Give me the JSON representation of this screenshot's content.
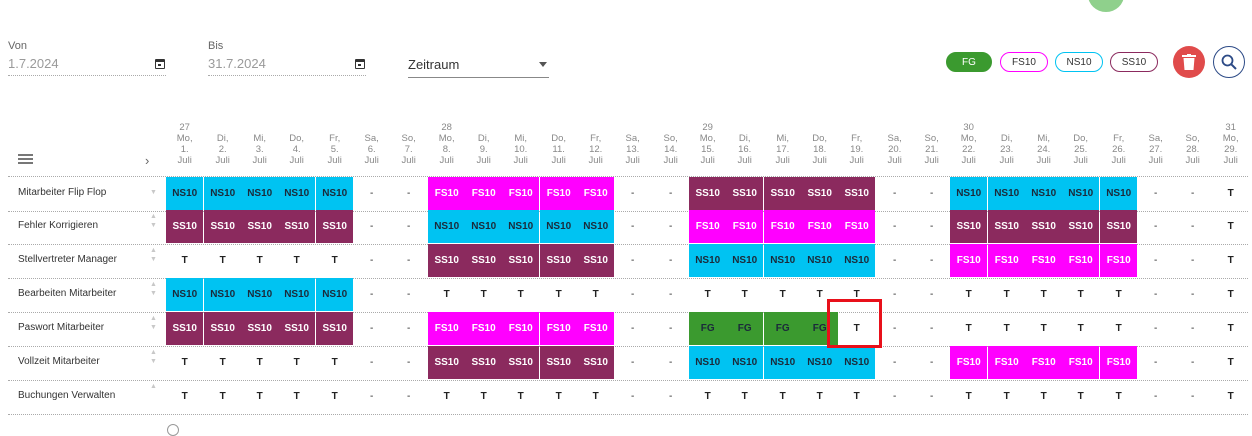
{
  "filters": {
    "from_label": "Von",
    "from_value": "1.7.2024",
    "to_label": "Bis",
    "to_value": "31.7.2024",
    "range_select": "Zeitraum"
  },
  "legend": [
    {
      "label": "FG",
      "fill": "#3b9a2f",
      "border": "#3b9a2f",
      "text": "#ffffff"
    },
    {
      "label": "FS10",
      "fill": "#ffffff",
      "border": "#ff00ff",
      "text": "#333333"
    },
    {
      "label": "NS10",
      "fill": "#ffffff",
      "border": "#00c3f2",
      "text": "#333333"
    },
    {
      "label": "SS10",
      "fill": "#ffffff",
      "border": "#8b2a5e",
      "text": "#333333"
    }
  ],
  "colors": {
    "FS10": "#ff00ff",
    "NS10": "#00c3f2",
    "SS10": "#8b2a5e",
    "FG": "#3b9a2f"
  },
  "days": [
    {
      "week": "27",
      "name": "Mo,",
      "num": "1.",
      "month": "Juli"
    },
    {
      "week": "",
      "name": "Di,",
      "num": "2.",
      "month": "Juli"
    },
    {
      "week": "",
      "name": "Mi,",
      "num": "3.",
      "month": "Juli"
    },
    {
      "week": "",
      "name": "Do,",
      "num": "4.",
      "month": "Juli"
    },
    {
      "week": "",
      "name": "Fr,",
      "num": "5.",
      "month": "Juli"
    },
    {
      "week": "",
      "name": "Sa,",
      "num": "6.",
      "month": "Juli"
    },
    {
      "week": "",
      "name": "So,",
      "num": "7.",
      "month": "Juli"
    },
    {
      "week": "28",
      "name": "Mo,",
      "num": "8.",
      "month": "Juli"
    },
    {
      "week": "",
      "name": "Di,",
      "num": "9.",
      "month": "Juli"
    },
    {
      "week": "",
      "name": "Mi,",
      "num": "10.",
      "month": "Juli"
    },
    {
      "week": "",
      "name": "Do,",
      "num": "11.",
      "month": "Juli"
    },
    {
      "week": "",
      "name": "Fr,",
      "num": "12.",
      "month": "Juli"
    },
    {
      "week": "",
      "name": "Sa,",
      "num": "13.",
      "month": "Juli"
    },
    {
      "week": "",
      "name": "So,",
      "num": "14.",
      "month": "Juli"
    },
    {
      "week": "29",
      "name": "Mo,",
      "num": "15.",
      "month": "Juli"
    },
    {
      "week": "",
      "name": "Di,",
      "num": "16.",
      "month": "Juli"
    },
    {
      "week": "",
      "name": "Mi,",
      "num": "17.",
      "month": "Juli"
    },
    {
      "week": "",
      "name": "Do,",
      "num": "18.",
      "month": "Juli"
    },
    {
      "week": "",
      "name": "Fr,",
      "num": "19.",
      "month": "Juli"
    },
    {
      "week": "",
      "name": "Sa,",
      "num": "20.",
      "month": "Juli"
    },
    {
      "week": "",
      "name": "So,",
      "num": "21.",
      "month": "Juli"
    },
    {
      "week": "30",
      "name": "Mo,",
      "num": "22.",
      "month": "Juli"
    },
    {
      "week": "",
      "name": "Di,",
      "num": "23.",
      "month": "Juli"
    },
    {
      "week": "",
      "name": "Mi,",
      "num": "24.",
      "month": "Juli"
    },
    {
      "week": "",
      "name": "Do,",
      "num": "25.",
      "month": "Juli"
    },
    {
      "week": "",
      "name": "Fr,",
      "num": "26.",
      "month": "Juli"
    },
    {
      "week": "",
      "name": "Sa,",
      "num": "27.",
      "month": "Juli"
    },
    {
      "week": "",
      "name": "So,",
      "num": "28.",
      "month": "Juli"
    },
    {
      "week": "31",
      "name": "Mo,",
      "num": "29.",
      "month": "Juli"
    }
  ],
  "rows": [
    {
      "name": "Mitarbeiter Flip Flop",
      "cells": [
        "NS10",
        "NS10",
        "NS10",
        "NS10",
        "NS10",
        "-",
        "-",
        "FS10",
        "FS10",
        "FS10",
        "FS10",
        "FS10",
        "-",
        "-",
        "SS10",
        "SS10",
        "SS10",
        "SS10",
        "SS10",
        "-",
        "-",
        "NS10",
        "NS10",
        "NS10",
        "NS10",
        "NS10",
        "-",
        "-",
        "T"
      ]
    },
    {
      "name": "Fehler Korrigieren",
      "cells": [
        "SS10",
        "SS10",
        "SS10",
        "SS10",
        "SS10",
        "-",
        "-",
        "NS10",
        "NS10",
        "NS10",
        "NS10",
        "NS10",
        "-",
        "-",
        "FS10",
        "FS10",
        "FS10",
        "FS10",
        "FS10",
        "-",
        "-",
        "SS10",
        "SS10",
        "SS10",
        "SS10",
        "SS10",
        "-",
        "-",
        "T"
      ]
    },
    {
      "name": "Stellvertreter Manager",
      "cells": [
        "T",
        "T",
        "T",
        "T",
        "T",
        "-",
        "-",
        "SS10",
        "SS10",
        "SS10",
        "SS10",
        "SS10",
        "-",
        "-",
        "NS10",
        "NS10",
        "NS10",
        "NS10",
        "NS10",
        "-",
        "-",
        "FS10",
        "FS10",
        "FS10",
        "FS10",
        "FS10",
        "-",
        "-",
        "T"
      ]
    },
    {
      "name": "Bearbeiten Mitarbeiter",
      "cells": [
        "NS10",
        "NS10",
        "NS10",
        "NS10",
        "NS10",
        "-",
        "-",
        "T",
        "T",
        "T",
        "T",
        "T",
        "-",
        "-",
        "T",
        "T",
        "T",
        "T",
        "T",
        "-",
        "-",
        "T",
        "T",
        "T",
        "T",
        "T",
        "-",
        "-",
        "T"
      ]
    },
    {
      "name": "Paswort Mitarbeiter",
      "cells": [
        "SS10",
        "SS10",
        "SS10",
        "SS10",
        "SS10",
        "-",
        "-",
        "FS10",
        "FS10",
        "FS10",
        "FS10",
        "FS10",
        "-",
        "-",
        "FG",
        "FG",
        "FG",
        "FG",
        "T",
        "-",
        "-",
        "T",
        "T",
        "T",
        "T",
        "T",
        "-",
        "-",
        "T"
      ]
    },
    {
      "name": "Vollzeit Mitarbeiter",
      "cells": [
        "T",
        "T",
        "T",
        "T",
        "T",
        "-",
        "-",
        "SS10",
        "SS10",
        "SS10",
        "SS10",
        "SS10",
        "-",
        "-",
        "NS10",
        "NS10",
        "NS10",
        "NS10",
        "NS10",
        "-",
        "-",
        "FS10",
        "FS10",
        "FS10",
        "FS10",
        "FS10",
        "-",
        "-",
        "T"
      ]
    },
    {
      "name": "Buchungen Verwalten",
      "cells": [
        "T",
        "T",
        "T",
        "T",
        "T",
        "-",
        "-",
        "T",
        "T",
        "T",
        "T",
        "T",
        "-",
        "-",
        "T",
        "T",
        "T",
        "T",
        "T",
        "-",
        "-",
        "T",
        "T",
        "T",
        "T",
        "T",
        "-",
        "-",
        "T"
      ]
    }
  ]
}
